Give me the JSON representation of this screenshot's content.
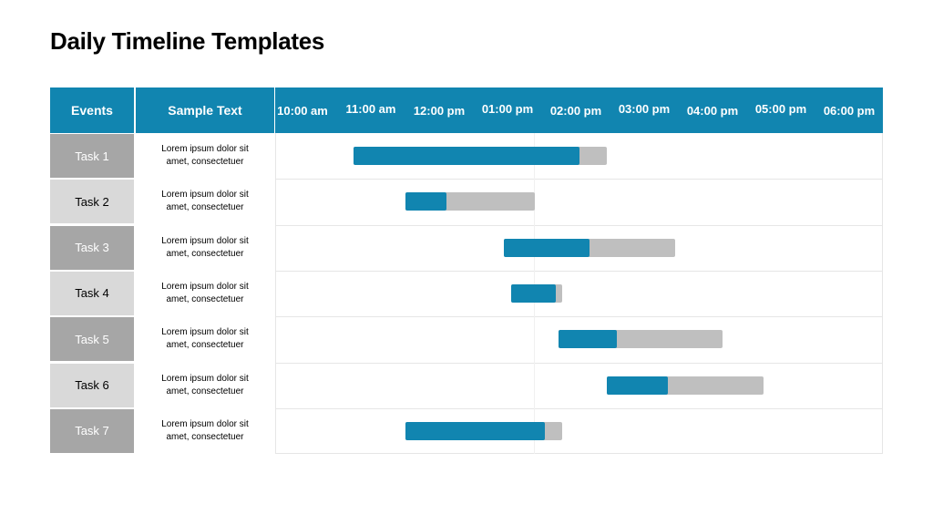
{
  "title": "Daily Timeline Templates",
  "headers": {
    "events": "Events",
    "sample": "Sample Text"
  },
  "colors": {
    "header": "#1185b0",
    "progress": "#1185b0",
    "remaining": "#bfbfbf",
    "task_dark": "#a6a6a6",
    "task_light": "#d9d9d9"
  },
  "chart_data": {
    "type": "bar",
    "orientation": "horizontal-gantt",
    "x_ticks": [
      "10:00 am",
      "11:00 am",
      "12:00 pm",
      "01:00 pm",
      "02:00 pm",
      "03:00 pm",
      "04:00 pm",
      "05:00 pm",
      "06:00 pm"
    ],
    "xlim": [
      10.0,
      18.0
    ],
    "grid": false,
    "rows": [
      {
        "task": "Task 1",
        "text": "Lorem ipsum dolor sit amet, consectetuer",
        "start": 10.75,
        "progress_end": 14.05,
        "end": 14.45
      },
      {
        "task": "Task 2",
        "text": "Lorem ipsum dolor sit amet, consectetuer",
        "start": 11.5,
        "progress_end": 12.1,
        "end": 13.4
      },
      {
        "task": "Task 3",
        "text": "Lorem ipsum dolor sit amet, consectetuer",
        "start": 12.95,
        "progress_end": 14.2,
        "end": 15.45
      },
      {
        "task": "Task 4",
        "text": "Lorem ipsum dolor sit amet, consectetuer",
        "start": 13.05,
        "progress_end": 13.7,
        "end": 13.8
      },
      {
        "task": "Task 5",
        "text": "Lorem ipsum dolor sit amet, consectetuer",
        "start": 13.75,
        "progress_end": 14.6,
        "end": 16.15
      },
      {
        "task": "Task 6",
        "text": "Lorem ipsum dolor sit amet, consectetuer",
        "start": 14.45,
        "progress_end": 15.35,
        "end": 16.75
      },
      {
        "task": "Task 7",
        "text": "Lorem ipsum dolor sit amet, consectetuer",
        "start": 11.5,
        "progress_end": 13.55,
        "end": 13.8
      }
    ]
  }
}
